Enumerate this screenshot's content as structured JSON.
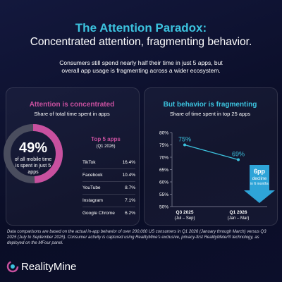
{
  "header": {
    "title": "The Attention Paradox:",
    "subtitle": "Concentrated attention, fragmenting behavior.",
    "description": "Consumers still spend nearly half their time in just 5 apps, but overall app usage is fragmenting across a wider ecosystem."
  },
  "chart_data": [
    {
      "type": "donut",
      "title": "Attention is concentrated",
      "subtitle": "Share of total time spent in apps",
      "values": [
        49
      ],
      "value_labels": [
        "49%"
      ],
      "center_text": "of all mobile time is spent in just 5 apps",
      "color": "#c8509f",
      "track_color": "#4a4d5e"
    },
    {
      "type": "line",
      "title": "But behavior is fragmenting",
      "subtitle": "Share of time spent in top 25 apps",
      "categories": [
        "Q3 2025",
        "Q1 2026"
      ],
      "category_sublabels": [
        "(Jul – Sep)",
        "(Jan – Mar)"
      ],
      "values": [
        75,
        69
      ],
      "value_labels": [
        "75%",
        "69%"
      ],
      "color": "#3cc3df",
      "ylim": [
        50,
        80
      ],
      "yticks": [
        {
          "value": 50,
          "label": "50%"
        },
        {
          "value": 55,
          "label": "55%"
        },
        {
          "value": 60,
          "label": "60%"
        },
        {
          "value": 65,
          "label": "65%"
        },
        {
          "value": 70,
          "label": "70%"
        },
        {
          "value": 75,
          "label": "75%"
        },
        {
          "value": 80,
          "label": "80%"
        }
      ],
      "annotation": {
        "line1": "6pp",
        "line2": "decline",
        "line3": "in 6 months"
      }
    }
  ],
  "top_apps": {
    "title": "Top 5 apps",
    "subtitle": "(Q1 2026)",
    "rows": [
      [
        "TikTok",
        "16.4%"
      ],
      [
        "Facebook",
        "10.4%"
      ],
      [
        "YouTube",
        "8.7%"
      ],
      [
        "Instagram",
        "7.1%"
      ],
      [
        "Google Chrome",
        "6.2%"
      ]
    ]
  },
  "footer": {
    "note": "Data comparisons are based on the actual in-app behavior of over 200,000 US consumers in Q1 2026 (January through March) versus Q3 2025 (July to September 2025). Consumer activity is captured using RealityMine's exclusive, privacy-first RealityMeter® technology, as deployed on the MFour panel.",
    "brand": "RealityMine"
  }
}
